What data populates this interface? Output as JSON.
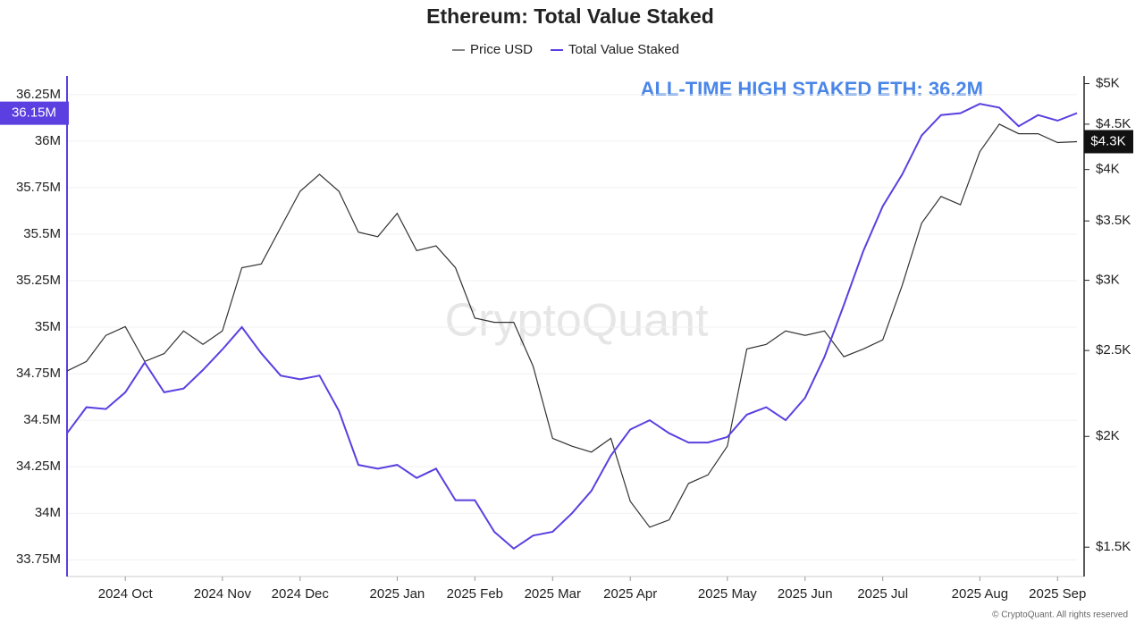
{
  "chart_data": {
    "type": "line",
    "title": "Ethereum: Total Value Staked",
    "annotation": "ALL-TIME HIGH STAKED ETH: 36.2M",
    "watermark": "CryptoQuant",
    "footer": "© CryptoQuant. All rights reserved",
    "categories": [
      null,
      null,
      null,
      "2024 Oct",
      null,
      null,
      null,
      null,
      "2024 Nov",
      null,
      null,
      null,
      "2024 Dec",
      null,
      null,
      null,
      null,
      "2025 Jan",
      null,
      null,
      null,
      "2025 Feb",
      null,
      null,
      null,
      "2025 Mar",
      null,
      null,
      null,
      "2025 Apr",
      null,
      null,
      null,
      null,
      "2025 May",
      null,
      null,
      null,
      "2025 Jun",
      null,
      null,
      null,
      "2025 Jul",
      null,
      null,
      null,
      null,
      "2025 Aug",
      null,
      null,
      null,
      "2025 Sep",
      null
    ],
    "series": [
      {
        "name": "Price USD",
        "color": "#333333",
        "axis": "y2",
        "end_label": "$4.3K",
        "values": [
          2370,
          2430,
          2600,
          2660,
          2430,
          2480,
          2630,
          2540,
          2630,
          3100,
          3130,
          3440,
          3780,
          3950,
          3780,
          3400,
          3360,
          3570,
          3240,
          3280,
          3100,
          2720,
          2690,
          2690,
          2400,
          1990,
          1950,
          1920,
          1990,
          1690,
          1580,
          1610,
          1770,
          1810,
          1950,
          2510,
          2540,
          2630,
          2600,
          2630,
          2460,
          2510,
          2570,
          2960,
          3480,
          3730,
          3650,
          4190,
          4500,
          4390,
          4390,
          4290,
          4300
        ]
      },
      {
        "name": "Total Value Staked",
        "color": "#5b3fe0",
        "end_label": "36.15M",
        "values": [
          34.43,
          34.57,
          34.56,
          34.65,
          34.81,
          34.65,
          34.67,
          34.77,
          34.88,
          35.0,
          34.86,
          34.74,
          34.72,
          34.74,
          34.55,
          34.26,
          34.24,
          34.26,
          34.19,
          34.24,
          34.07,
          34.07,
          33.9,
          33.81,
          33.88,
          33.9,
          34.0,
          34.12,
          34.31,
          34.45,
          34.5,
          34.43,
          34.38,
          34.38,
          34.41,
          34.53,
          34.57,
          34.5,
          34.62,
          34.84,
          35.12,
          35.41,
          35.65,
          35.82,
          36.03,
          36.14,
          36.15,
          36.2,
          36.18,
          36.08,
          36.14,
          36.11,
          36.15
        ]
      }
    ],
    "ylim": [
      33.66,
      36.35
    ],
    "yticks": [
      {
        "value": 33.75,
        "label": "33.75M"
      },
      {
        "value": 34,
        "label": "34M"
      },
      {
        "value": 34.25,
        "label": "34.25M"
      },
      {
        "value": 34.5,
        "label": "34.5M"
      },
      {
        "value": 34.75,
        "label": "34.75M"
      },
      {
        "value": 35,
        "label": "35M"
      },
      {
        "value": 35.25,
        "label": "35.25M"
      },
      {
        "value": 35.5,
        "label": "35.5M"
      },
      {
        "value": 35.75,
        "label": "35.75M"
      },
      {
        "value": 36,
        "label": "36M"
      },
      {
        "value": 36.25,
        "label": "36.25M"
      }
    ],
    "y2lim": [
      1390,
      5100
    ],
    "y2log": true,
    "y2ticks": [
      {
        "value": 1500,
        "label": "$1.5K"
      },
      {
        "value": 2000,
        "label": "$2K"
      },
      {
        "value": 2500,
        "label": "$2.5K"
      },
      {
        "value": 3000,
        "label": "$3K"
      },
      {
        "value": 3500,
        "label": "$3.5K"
      },
      {
        "value": 4000,
        "label": "$4K"
      },
      {
        "value": 4500,
        "label": "$4.5K"
      },
      {
        "value": 5000,
        "label": "$5K"
      }
    ],
    "grid": true
  }
}
